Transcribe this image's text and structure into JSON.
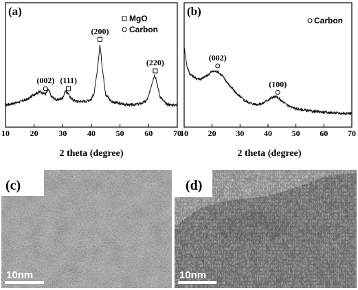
{
  "panels": {
    "a": {
      "letter": "(a)"
    },
    "b": {
      "letter": "(b)"
    },
    "c": {
      "letter": "(c)",
      "scale_label": "10nm"
    },
    "d": {
      "letter": "(d)",
      "scale_label": "10nm"
    }
  },
  "chart_data": [
    {
      "type": "line",
      "panel": "(a)",
      "xlabel": "2 theta (degree)",
      "ylabel": "",
      "xlim": [
        10,
        70
      ],
      "xticks": [
        "10",
        "20",
        "30",
        "40",
        "50",
        "60",
        "70"
      ],
      "grid": false,
      "legend": {
        "placement": "top-right",
        "entries": [
          {
            "marker": "square",
            "label": "MgO"
          },
          {
            "marker": "circle",
            "label": "Carbon"
          }
        ]
      },
      "annotations": [
        {
          "label": "(002)",
          "x": 24,
          "marker": "circle"
        },
        {
          "label": "(111)",
          "x": 32,
          "marker": "square"
        },
        {
          "label": "(200)",
          "x": 43,
          "marker": "square"
        },
        {
          "label": "(220)",
          "x": 62.3,
          "marker": "square"
        }
      ],
      "series": [
        {
          "x": [
            10,
            14,
            18,
            20,
            22,
            24,
            25,
            26,
            28,
            30,
            31,
            32,
            33,
            35,
            38,
            40,
            41,
            42,
            43,
            44,
            45,
            47,
            50,
            54,
            57,
            59,
            60,
            61,
            62,
            62.5,
            63,
            64,
            66,
            68,
            70
          ],
          "y": [
            3,
            5,
            8,
            12,
            14,
            12,
            16,
            10,
            7,
            9,
            15,
            12,
            8,
            6,
            6,
            8,
            13,
            30,
            53,
            30,
            12,
            6,
            4,
            3,
            4,
            6,
            10,
            20,
            28,
            26,
            20,
            10,
            4,
            3,
            3
          ]
        }
      ]
    },
    {
      "type": "line",
      "panel": "(b)",
      "xlabel": "2 theta (degree)",
      "ylabel": "",
      "xlim": [
        10,
        70
      ],
      "xticks": [
        "10",
        "20",
        "30",
        "40",
        "50",
        "60",
        "70"
      ],
      "grid": false,
      "legend": {
        "placement": "top-right",
        "entries": [
          {
            "marker": "circle",
            "label": "Carbon"
          }
        ]
      },
      "annotations": [
        {
          "label": "(002)",
          "x": 22,
          "marker": "circle"
        },
        {
          "label": "(100)",
          "x": 43.5,
          "marker": "circle"
        }
      ],
      "series": [
        {
          "x": [
            10,
            11,
            12,
            14,
            16,
            18,
            20,
            22,
            24,
            26,
            28,
            30,
            32,
            34,
            36,
            38,
            40,
            42,
            43,
            44,
            46,
            48,
            50,
            55,
            60,
            65,
            70
          ],
          "y": [
            62,
            45,
            38,
            34,
            33,
            36,
            40,
            40,
            35,
            28,
            22,
            17,
            13,
            11,
            10,
            11,
            14,
            17,
            17,
            15,
            11,
            8,
            6,
            4,
            3,
            2,
            2
          ]
        }
      ]
    }
  ]
}
